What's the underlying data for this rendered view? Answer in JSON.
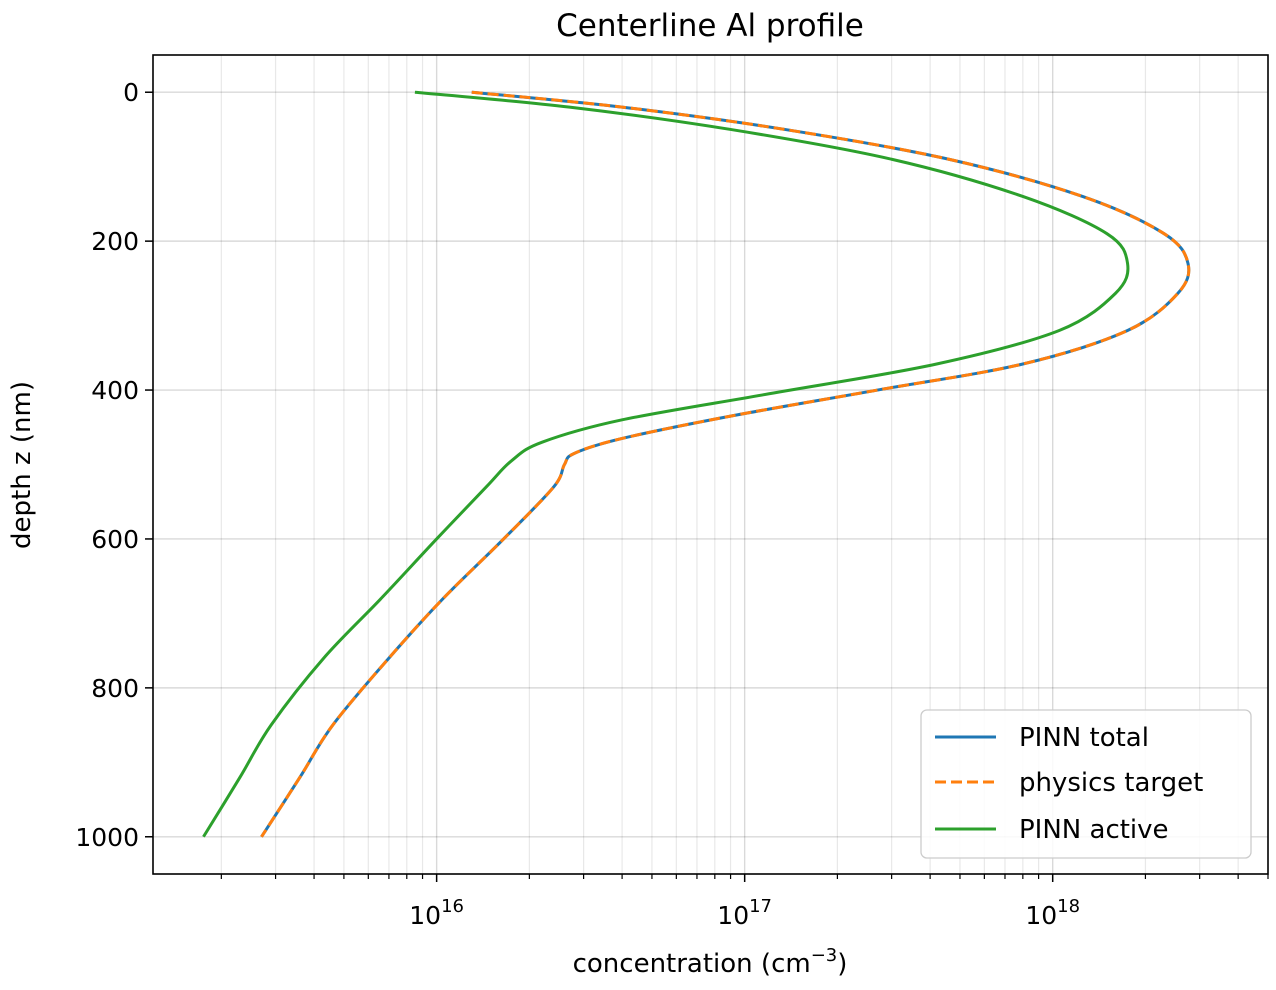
{
  "chart_data": {
    "type": "line",
    "title": "Centerline Al profile",
    "xlabel": "concentration (cm",
    "xlabel_sup": "−3",
    "xlabel_close": ")",
    "ylabel": "depth z (nm)",
    "x_scale": "log",
    "xlim": [
      1200000000000000.0,
      5e+18
    ],
    "ylim": [
      1050,
      -50
    ],
    "x_major_ticks": [
      {
        "value": 1e+16,
        "base": "10",
        "exp": "16"
      },
      {
        "value": 1e+17,
        "base": "10",
        "exp": "17"
      },
      {
        "value": 1e+18,
        "base": "10",
        "exp": "18"
      }
    ],
    "y_ticks": [
      {
        "value": 0,
        "label": "0"
      },
      {
        "value": 200,
        "label": "200"
      },
      {
        "value": 400,
        "label": "400"
      },
      {
        "value": 600,
        "label": "600"
      },
      {
        "value": 800,
        "label": "800"
      },
      {
        "value": 1000,
        "label": "1000"
      }
    ],
    "grid": true,
    "legend_position": "bottom-right",
    "colors": {
      "pinn_total": "#1f77b4",
      "physics_target": "#ff7f0e",
      "pinn_active": "#2ca02c"
    },
    "series": [
      {
        "name": "PINN total",
        "style": "solid",
        "x": [
          1.3e+16,
          4e+16,
          1.35e+17,
          4.6e+17,
          1.25e+18,
          2.3e+18,
          2.75e+18,
          2.55e+18,
          1.75e+18,
          8e+17,
          2.7e+17,
          9e+16,
          4e+16,
          2.8e+16,
          2.6e+16,
          2.4e+16,
          1.65e+16,
          1.05e+16,
          7000000000000000.0,
          4600000000000000.0,
          3600000000000000.0,
          2700000000000000.0
        ],
        "y": [
          0,
          20,
          50,
          90,
          140,
          190,
          230,
          270,
          320,
          365,
          400,
          435,
          465,
          485,
          500,
          530,
          600,
          680,
          760,
          850,
          920,
          1000
        ]
      },
      {
        "name": "physics target",
        "style": "dashed",
        "x": [
          1.3e+16,
          4e+16,
          1.35e+17,
          4.6e+17,
          1.25e+18,
          2.3e+18,
          2.75e+18,
          2.55e+18,
          1.75e+18,
          8e+17,
          2.7e+17,
          9e+16,
          4e+16,
          2.8e+16,
          2.6e+16,
          2.4e+16,
          1.65e+16,
          1.05e+16,
          7000000000000000.0,
          4600000000000000.0,
          3600000000000000.0,
          2700000000000000.0
        ],
        "y": [
          0,
          20,
          50,
          90,
          140,
          190,
          230,
          270,
          320,
          365,
          400,
          435,
          465,
          485,
          500,
          530,
          600,
          680,
          760,
          850,
          920,
          1000
        ]
      },
      {
        "name": "PINN active",
        "style": "solid",
        "x": [
          8500000000000000.0,
          2.7e+16,
          9e+16,
          3e+17,
          8e+17,
          1.5e+18,
          1.75e+18,
          1.6e+18,
          1.05e+18,
          4.2e+17,
          1.2e+17,
          4e+16,
          2.2e+16,
          1.75e+16,
          1.45e+16,
          1e+16,
          6600000000000000.0,
          4300000000000000.0,
          2900000000000000.0,
          2300000000000000.0,
          1750000000000000.0
        ],
        "y": [
          0,
          20,
          50,
          90,
          140,
          190,
          230,
          270,
          320,
          365,
          405,
          440,
          470,
          495,
          530,
          600,
          680,
          760,
          850,
          920,
          1000
        ]
      }
    ]
  }
}
